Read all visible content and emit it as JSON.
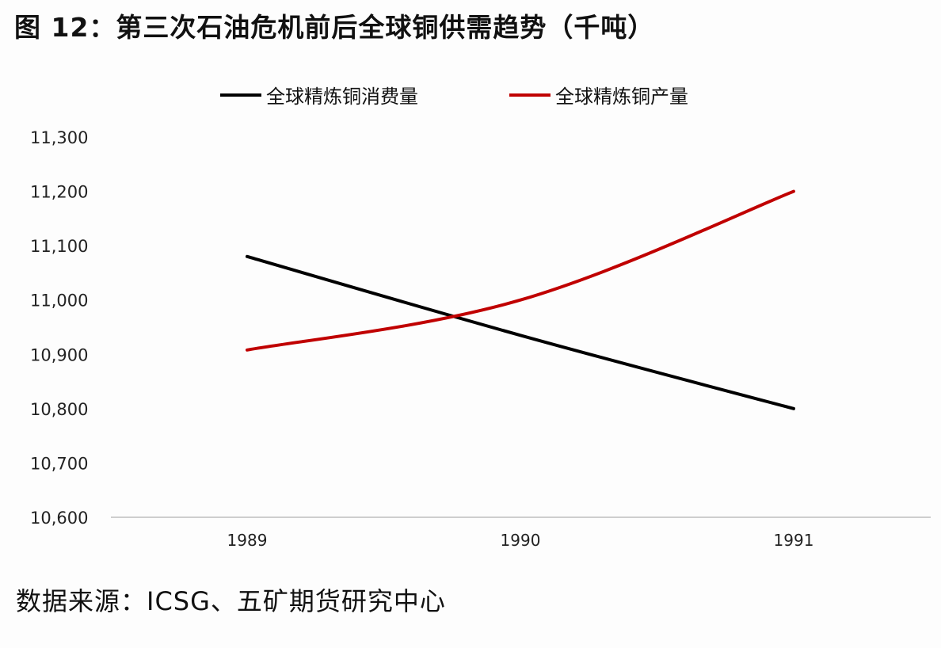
{
  "title": "图 12：第三次石油危机前后全球铜供需趋势（千吨）",
  "source": "数据来源：ICSG、五矿期货研究中心",
  "legend": [
    {
      "label": "全球精炼铜消费量",
      "color": "#000000"
    },
    {
      "label": "全球精炼铜产量",
      "color": "#c00000"
    }
  ],
  "chart_data": {
    "type": "line",
    "title": "图 12：第三次石油危机前后全球铜供需趋势（千吨）",
    "xlabel": "",
    "ylabel": "",
    "categories": [
      "1989",
      "1990",
      "1991"
    ],
    "series": [
      {
        "name": "全球精炼铜消费量",
        "color": "#000000",
        "values": [
          11080,
          10935,
          10800
        ]
      },
      {
        "name": "全球精炼铜产量",
        "color": "#c00000",
        "values": [
          10908,
          11000,
          11200
        ]
      }
    ],
    "ylim": [
      10600,
      11300
    ],
    "yticks": [
      "11,300",
      "11,200",
      "11,100",
      "11,000",
      "10,900",
      "10,800",
      "10,700",
      "10,600"
    ],
    "grid": false,
    "legend_position": "top",
    "smooth": true
  }
}
